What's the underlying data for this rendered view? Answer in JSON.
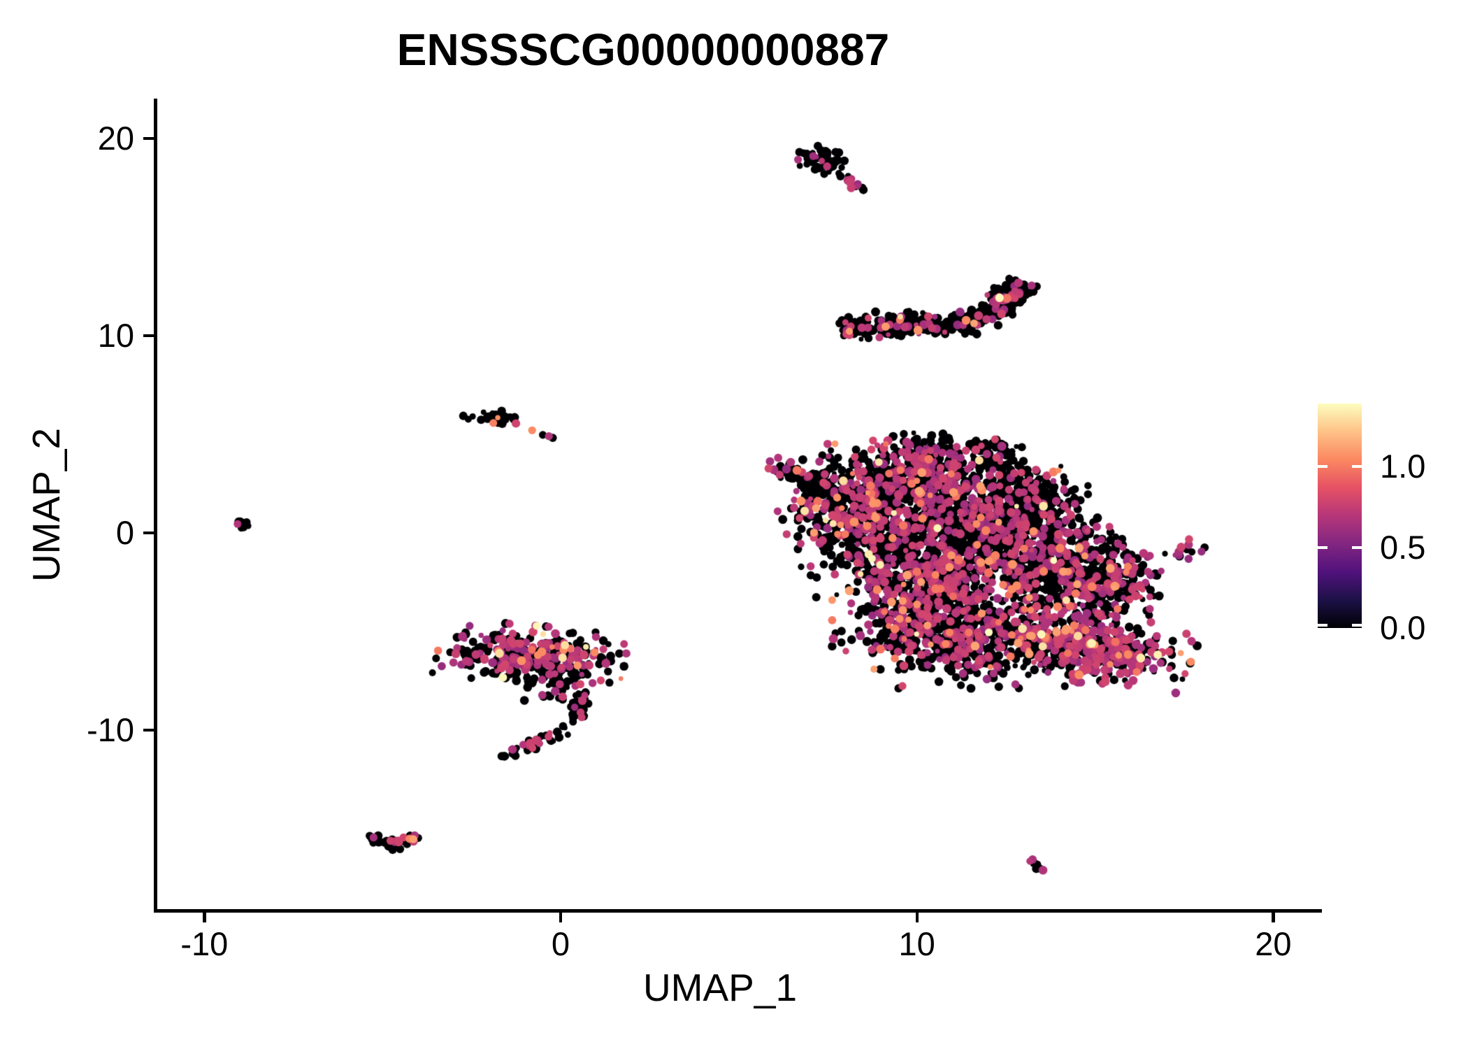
{
  "title": "ENSSSCG00000000887",
  "axes": {
    "x": {
      "label": "UMAP_1",
      "tick_labels": [
        "-10",
        "0",
        "10",
        "20"
      ],
      "tick_values": [
        -10,
        0,
        10,
        20
      ],
      "range": [
        -11.4,
        21.4
      ]
    },
    "y": {
      "label": "UMAP_2",
      "tick_labels": [
        "20",
        "10",
        "0",
        "-10"
      ],
      "tick_values": [
        20,
        10,
        0,
        -10
      ],
      "range": [
        -19.1,
        21.95
      ]
    }
  },
  "legend": {
    "ticks": [
      "1.0",
      "0.5",
      "0.0"
    ],
    "tick_values": [
      1.0,
      0.5,
      0.0
    ],
    "max_value": 1.39,
    "colormap": "magma",
    "stops": [
      "#000004",
      "#1D1147",
      "#51127C",
      "#822681",
      "#B63679",
      "#E65164",
      "#FB8861",
      "#FEC287",
      "#FCFDBF"
    ]
  },
  "style": {
    "background": "#FFFFFF",
    "axis_color": "#000000",
    "zero_point_color": "#000004",
    "mid_point_color": "#B63679",
    "high_point_color": "#FB8861",
    "top_point_color": "#FCEFB4"
  },
  "chart_data": {
    "type": "scatter",
    "title": "ENSSSCG00000000887",
    "xlabel": "UMAP_1",
    "ylabel": "UMAP_2",
    "xlim": [
      -11.4,
      21.4
    ],
    "ylim": [
      -19.1,
      21.95
    ],
    "color_scale": {
      "variable": "expression",
      "min": 0.0,
      "max": 1.39,
      "colormap": "magma",
      "legend_ticks": [
        0.0,
        0.5,
        1.0
      ]
    },
    "note": "Single-cell UMAP feature plot; thousands of cells approximated by cluster specs below. mix = fraction of points with [zero, mid(~0.6-0.8), high(~1.0), top(~1.3)] expression.",
    "clusters": [
      {
        "name": "top-small-blob",
        "kind": "blob",
        "cx": 7.4,
        "cy": 18.85,
        "sx": 0.42,
        "sy": 0.3,
        "rot": -38,
        "n": 52,
        "mix": [
          0.84,
          0.14,
          0.02,
          0
        ]
      },
      {
        "name": "top-small-tail",
        "kind": "path",
        "path": [
          [
            7.8,
            18.3
          ],
          [
            8.15,
            17.8
          ],
          [
            8.5,
            17.35
          ]
        ],
        "width": 0.09,
        "n": 13,
        "mix": [
          0.55,
          0.45,
          0,
          0
        ]
      },
      {
        "name": "crescent",
        "kind": "path",
        "path": [
          [
            7.85,
            10.35
          ],
          [
            8.7,
            10.55
          ],
          [
            9.6,
            10.6
          ],
          [
            10.5,
            10.5
          ],
          [
            11.2,
            10.55
          ],
          [
            11.9,
            11.0
          ],
          [
            12.5,
            11.9
          ],
          [
            12.85,
            12.6
          ]
        ],
        "width": 0.27,
        "n": 400,
        "mix": [
          0.86,
          0.125,
          0.01,
          0.005
        ]
      },
      {
        "name": "crescent-tip",
        "kind": "blob",
        "cx": 12.55,
        "cy": 11.95,
        "sx": 0.2,
        "sy": 0.42,
        "rot": -35,
        "n": 26,
        "mix": [
          0.35,
          0.6,
          0.05,
          0
        ]
      },
      {
        "name": "left-small",
        "kind": "blob",
        "cx": -1.95,
        "cy": 5.8,
        "sx": 0.33,
        "sy": 0.18,
        "rot": -12,
        "n": 26,
        "mix": [
          0.72,
          0.24,
          0.04,
          0
        ]
      },
      {
        "name": "far-left-tiny",
        "kind": "blob",
        "cx": -8.95,
        "cy": 0.42,
        "sx": 0.17,
        "sy": 0.13,
        "rot": 35,
        "n": 8,
        "mix": [
          0.93,
          0.07,
          0,
          0
        ]
      },
      {
        "name": "main-left-arm",
        "kind": "path",
        "path": [
          [
            5.95,
            3.3
          ],
          [
            6.6,
            3.05
          ],
          [
            7.2,
            2.6
          ],
          [
            7.9,
            2.1
          ]
        ],
        "width": 0.22,
        "n": 55,
        "mix": [
          0.8,
          0.18,
          0.02,
          0
        ]
      },
      {
        "name": "main-left-edge",
        "kind": "blob",
        "cx": 7.3,
        "cy": 1.4,
        "sx": 0.55,
        "sy": 1.3,
        "n": 130,
        "mix": [
          0.55,
          0.4,
          0.04,
          0.01
        ]
      },
      {
        "name": "main-upper-left",
        "kind": "blob",
        "cx": 8.7,
        "cy": 1.7,
        "sx": 0.85,
        "sy": 1.05,
        "n": 270,
        "mix": [
          0.67,
          0.29,
          0.033,
          0.007
        ]
      },
      {
        "name": "main-top-lobe",
        "kind": "blob",
        "cx": 10.2,
        "cy": 2.9,
        "sx": 1.05,
        "sy": 0.85,
        "n": 340,
        "mix": [
          0.67,
          0.29,
          0.033,
          0.007
        ]
      },
      {
        "name": "main-top-peak",
        "kind": "blob",
        "cx": 9.95,
        "cy": 4.25,
        "sx": 0.4,
        "sy": 0.35,
        "n": 45,
        "mix": [
          0.75,
          0.25,
          0,
          0
        ]
      },
      {
        "name": "main-top-right-peak",
        "kind": "blob",
        "cx": 12.0,
        "cy": 4.0,
        "sx": 0.45,
        "sy": 0.4,
        "n": 50,
        "mix": [
          0.75,
          0.23,
          0.02,
          0
        ]
      },
      {
        "name": "main-upper-right",
        "kind": "blob",
        "cx": 13.0,
        "cy": 2.0,
        "sx": 0.75,
        "sy": 0.85,
        "n": 190,
        "mix": [
          0.7,
          0.27,
          0.03,
          0
        ]
      },
      {
        "name": "main-mid-left",
        "kind": "blob",
        "cx": 9.3,
        "cy": -0.4,
        "sx": 0.95,
        "sy": 1.25,
        "n": 380,
        "mix": [
          0.67,
          0.29,
          0.033,
          0.007
        ]
      },
      {
        "name": "main-center",
        "kind": "blob",
        "cx": 11.4,
        "cy": 0.5,
        "sx": 1.1,
        "sy": 1.05,
        "n": 380,
        "mix": [
          0.72,
          0.25,
          0.025,
          0.005
        ]
      },
      {
        "name": "main-center-low",
        "kind": "blob",
        "cx": 11.0,
        "cy": -2.3,
        "sx": 1.1,
        "sy": 1.15,
        "n": 400,
        "mix": [
          0.67,
          0.29,
          0.033,
          0.007
        ]
      },
      {
        "name": "main-right",
        "kind": "blob",
        "cx": 13.4,
        "cy": -0.7,
        "sx": 1.05,
        "sy": 1.35,
        "n": 420,
        "mix": [
          0.7,
          0.26,
          0.033,
          0.007
        ]
      },
      {
        "name": "main-right-edge",
        "kind": "blob",
        "cx": 14.7,
        "cy": -2.7,
        "sx": 0.85,
        "sy": 1.15,
        "n": 290,
        "mix": [
          0.66,
          0.3,
          0.033,
          0.007
        ]
      },
      {
        "name": "main-right-nub",
        "kind": "blob",
        "cx": 15.7,
        "cy": -2.4,
        "sx": 0.5,
        "sy": 0.75,
        "n": 90,
        "mix": [
          0.6,
          0.36,
          0.04,
          0
        ]
      },
      {
        "name": "main-bottom-band",
        "kind": "blob",
        "cx": 12.1,
        "cy": -5.6,
        "sx": 1.35,
        "sy": 0.95,
        "n": 430,
        "mix": [
          0.62,
          0.34,
          0.033,
          0.007
        ]
      },
      {
        "name": "main-bottom-left",
        "kind": "blob",
        "cx": 9.9,
        "cy": -4.4,
        "sx": 0.95,
        "sy": 1.05,
        "n": 310,
        "mix": [
          0.6,
          0.36,
          0.033,
          0.007
        ]
      },
      {
        "name": "main-bottom-right-wing",
        "kind": "blob",
        "cx": 15.0,
        "cy": -5.9,
        "sx": 1.15,
        "sy": 0.72,
        "rot": -15,
        "n": 400,
        "mix": [
          0.44,
          0.51,
          0.04,
          0.01
        ]
      },
      {
        "name": "right-small",
        "kind": "blob",
        "cx": 17.5,
        "cy": -0.85,
        "sx": 0.24,
        "sy": 0.33,
        "rot": 20,
        "n": 14,
        "mix": [
          0.55,
          0.45,
          0,
          0
        ]
      },
      {
        "name": "bottom-left-band",
        "kind": "blob",
        "cx": -0.8,
        "cy": -6.15,
        "sx": 1.1,
        "sy": 0.6,
        "rot": -8,
        "n": 340,
        "mix": [
          0.6,
          0.36,
          0.025,
          0.015
        ]
      },
      {
        "name": "bottom-left-mid",
        "kind": "blob",
        "cx": 0.05,
        "cy": -7.6,
        "sx": 0.55,
        "sy": 0.5,
        "n": 45,
        "mix": [
          0.8,
          0.2,
          0,
          0
        ]
      },
      {
        "name": "bottom-left-tail",
        "kind": "path",
        "path": [
          [
            0.6,
            -8.1
          ],
          [
            0.55,
            -8.9
          ],
          [
            0.25,
            -9.7
          ],
          [
            -0.35,
            -10.4
          ],
          [
            -1.1,
            -11.0
          ],
          [
            -1.8,
            -11.5
          ]
        ],
        "width": 0.14,
        "n": 70,
        "mix": [
          0.76,
          0.24,
          0,
          0
        ]
      },
      {
        "name": "bird-cluster",
        "kind": "path",
        "path": [
          [
            -5.35,
            -15.3
          ],
          [
            -5.05,
            -15.68
          ],
          [
            -4.7,
            -15.55
          ],
          [
            -4.45,
            -15.62
          ],
          [
            -4.05,
            -15.38
          ]
        ],
        "width": 0.1,
        "n": 42,
        "mix": [
          0.6,
          0.32,
          0.08,
          0
        ]
      },
      {
        "name": "bird-droop",
        "kind": "blob",
        "cx": -4.7,
        "cy": -15.95,
        "sx": 0.1,
        "sy": 0.12,
        "n": 6,
        "mix": [
          1,
          0,
          0,
          0
        ]
      },
      {
        "name": "tiny-bottom",
        "kind": "path",
        "path": [
          [
            13.2,
            -16.6
          ],
          [
            13.45,
            -16.95
          ],
          [
            13.68,
            -17.3
          ]
        ],
        "width": 0.07,
        "n": 7,
        "mix": [
          0.85,
          0.15,
          0,
          0
        ]
      }
    ],
    "singletons": [
      {
        "x": -0.8,
        "y": 5.2,
        "v": 1.05
      },
      {
        "x": -0.33,
        "y": 4.9,
        "v": 0.68
      },
      {
        "x": -0.5,
        "y": 4.97,
        "v": 0
      },
      {
        "x": -0.22,
        "y": 4.82,
        "v": 0
      },
      {
        "x": 0.71,
        "y": -5.78,
        "v": 1.33
      },
      {
        "x": -0.53,
        "y": -6.03,
        "v": 1.05
      },
      {
        "x": -0.24,
        "y": -5.78,
        "v": 1.02
      },
      {
        "x": 11.38,
        "y": 10.78,
        "v": 1.05
      },
      {
        "x": 12.85,
        "y": 12.68,
        "v": 0.7
      },
      {
        "x": 14.9,
        "y": -5.6,
        "v": 1.35
      },
      {
        "x": 15.42,
        "y": -6.66,
        "v": 1.05
      },
      {
        "x": 14.55,
        "y": -7.2,
        "v": 1.05
      }
    ]
  }
}
